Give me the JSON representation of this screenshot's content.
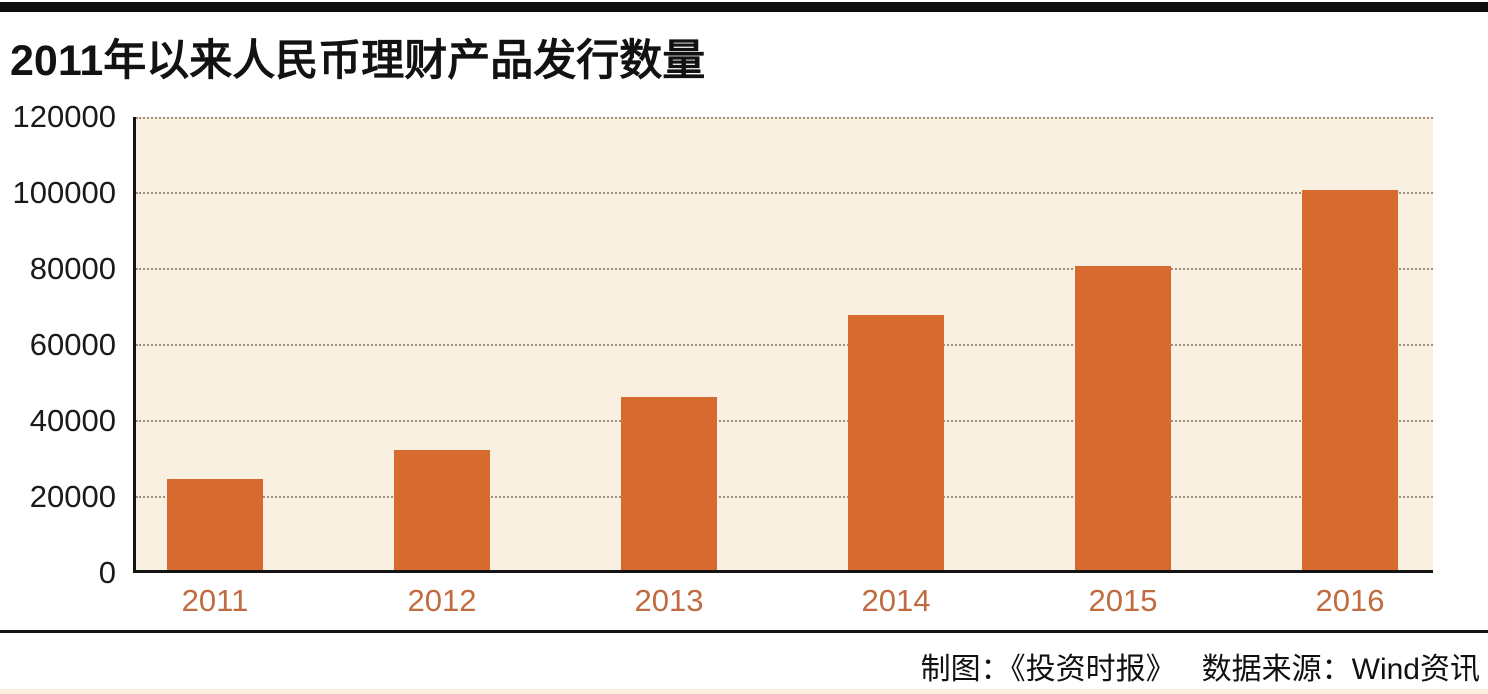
{
  "page": {
    "background": "#ffffff",
    "top_bar_color": "#0e0e0e",
    "separator_color": "#141414",
    "bottom_band_color": "#fcefdd"
  },
  "title": "2011年以来人民币理财产品发行数量",
  "footer": {
    "credit": "制图：《投资时报》",
    "source": "数据来源：Wind资讯"
  },
  "chart_data": {
    "type": "bar",
    "title": "2011年以来人民币理财产品发行数量",
    "categories": [
      "2011",
      "2012",
      "2013",
      "2014",
      "2015",
      "2016"
    ],
    "values": [
      24000,
      31500,
      45500,
      67000,
      80000,
      100000
    ],
    "xlabel": "",
    "ylabel": "",
    "ylim": [
      0,
      120000
    ],
    "yticks": [
      0,
      20000,
      40000,
      60000,
      80000,
      100000,
      120000
    ],
    "grid": "horizontal-dotted",
    "legend": "none",
    "bar_color": "#d76a2e",
    "plot_background": "#faf0e2",
    "category_label_color": "#c06b40",
    "axis_color": "#141414",
    "gridline_color": "#a08f7c"
  }
}
